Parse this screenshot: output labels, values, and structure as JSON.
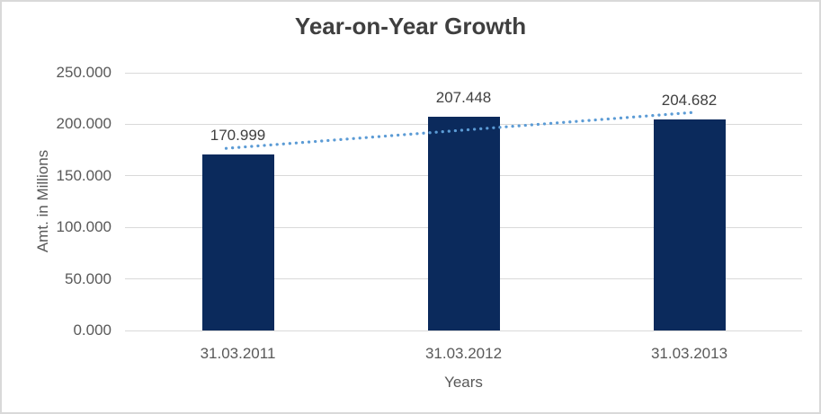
{
  "chart_data": {
    "type": "bar",
    "title": "Year-on-Year Growth",
    "categories": [
      "31.03.2011",
      "31.03.2012",
      "31.03.2013"
    ],
    "values": [
      170.999,
      207.448,
      204.682
    ],
    "data_labels": [
      "170.999",
      "207.448",
      "204.682"
    ],
    "xlabel": "Years",
    "ylabel": "Amt. in Millions",
    "ylim": [
      0,
      250
    ],
    "ytick_step": 50,
    "ytick_labels": [
      "0.000",
      "50.000",
      "100.000",
      "150.000",
      "200.000",
      "250.000"
    ],
    "grid": true,
    "legend": "none",
    "trendline": {
      "type": "linear",
      "style": "dotted"
    },
    "colors": {
      "bar": "#0b2a5c",
      "trendline": "#5b9bd5",
      "gridline": "#d9d9d9",
      "frame_border": "#d9d9d9",
      "title_text": "#3f3f3f",
      "axis_text": "#595959",
      "data_label_text": "#404040"
    }
  }
}
